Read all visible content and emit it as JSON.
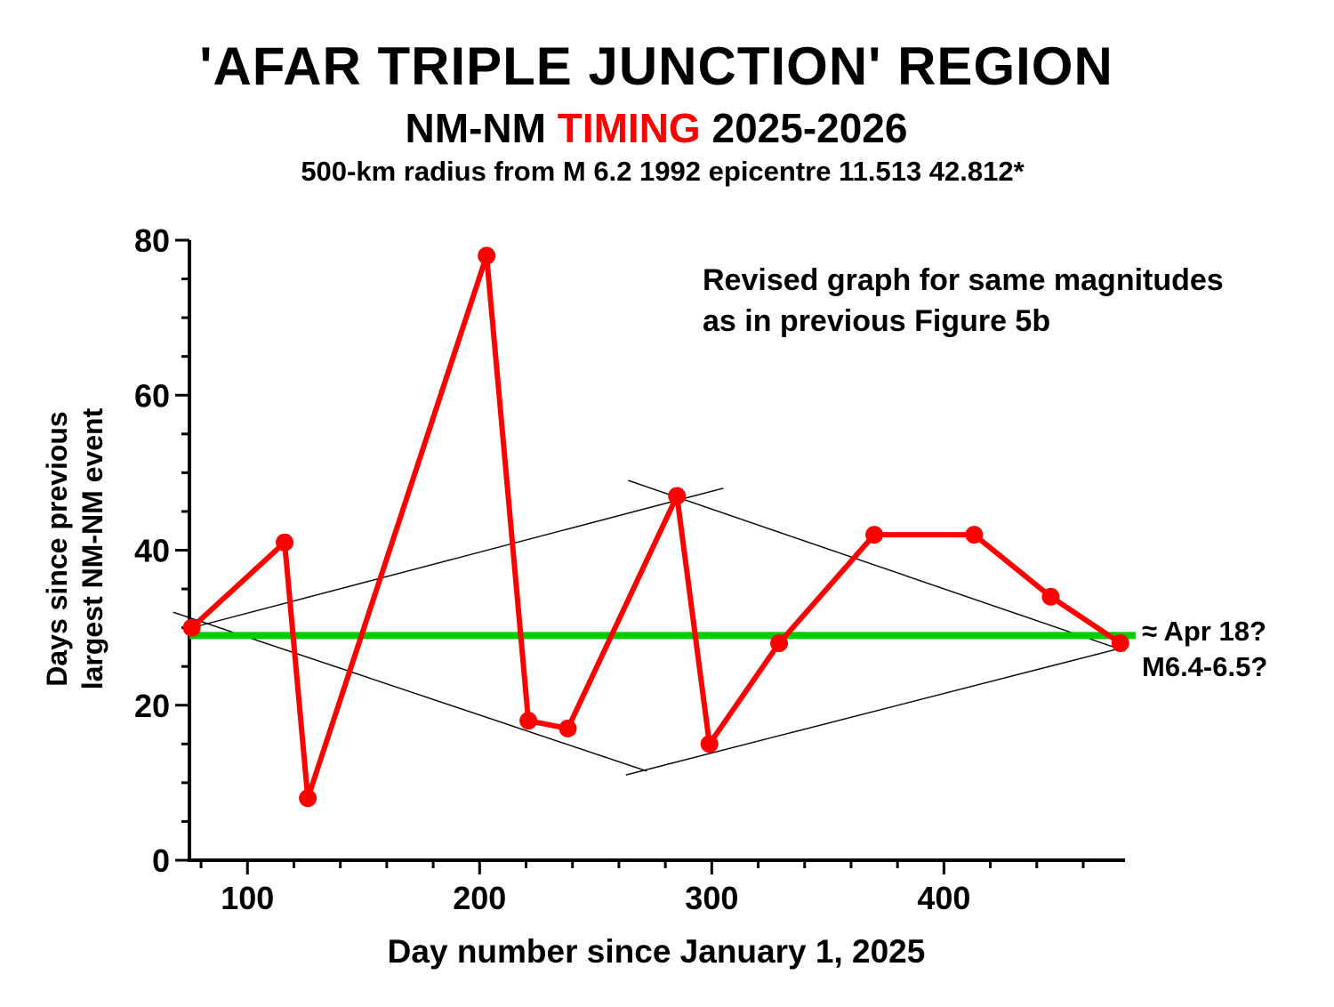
{
  "chart_data": {
    "type": "line",
    "title": "'AFAR TRIPLE JUNCTION' REGION",
    "subtitle": {
      "prefix": "NM-NM",
      "highlight": "TIMING",
      "suffix": "2025-2026"
    },
    "subtitle2": "500-km radius from M 6.2 1992 epicentre 11.513 42.812*",
    "ylabel_lines": [
      "Days since previous",
      "largest NM-NM event"
    ],
    "xlabel": "Day number since January 1, 2025",
    "xlim": [
      75,
      478
    ],
    "ylim": [
      0,
      80
    ],
    "x_ticks": [
      100,
      200,
      300,
      400
    ],
    "x_tick_labels": [
      "100",
      "200",
      "300",
      "400"
    ],
    "y_ticks": [
      0,
      20,
      40,
      60,
      80
    ],
    "y_tick_labels": [
      "0",
      "20",
      "40",
      "60",
      "80"
    ],
    "grid": false,
    "series": [
      {
        "color": "#ff0000",
        "x": [
          76,
          116,
          126,
          203,
          221,
          238,
          285,
          299,
          329,
          370,
          413,
          446,
          476
        ],
        "y": [
          30,
          41,
          8,
          78,
          18,
          17,
          47,
          15,
          28,
          42,
          42,
          34,
          28
        ]
      }
    ],
    "reference_line": {
      "y": 29,
      "color": "#00cc00"
    },
    "trend_lines": [
      {
        "x": [
          76,
          305
        ],
        "y": [
          30,
          48
        ]
      },
      {
        "x": [
          264,
          478
        ],
        "y": [
          49,
          27
        ]
      },
      {
        "x": [
          68,
          272
        ],
        "y": [
          32,
          11.5
        ]
      },
      {
        "x": [
          263,
          478
        ],
        "y": [
          11,
          27.5
        ]
      }
    ],
    "annotation_lines": [
      "Revised graph for same magnitudes",
      "as in previous Figure 5b"
    ],
    "forecast_lines": [
      "≈ Apr 18?",
      "M6.4-6.5?"
    ],
    "colors": {
      "series": "#ff0000",
      "reference": "#00cc00",
      "trend": "#000000",
      "axis": "#000000",
      "highlight_text": "#ff0000"
    }
  }
}
